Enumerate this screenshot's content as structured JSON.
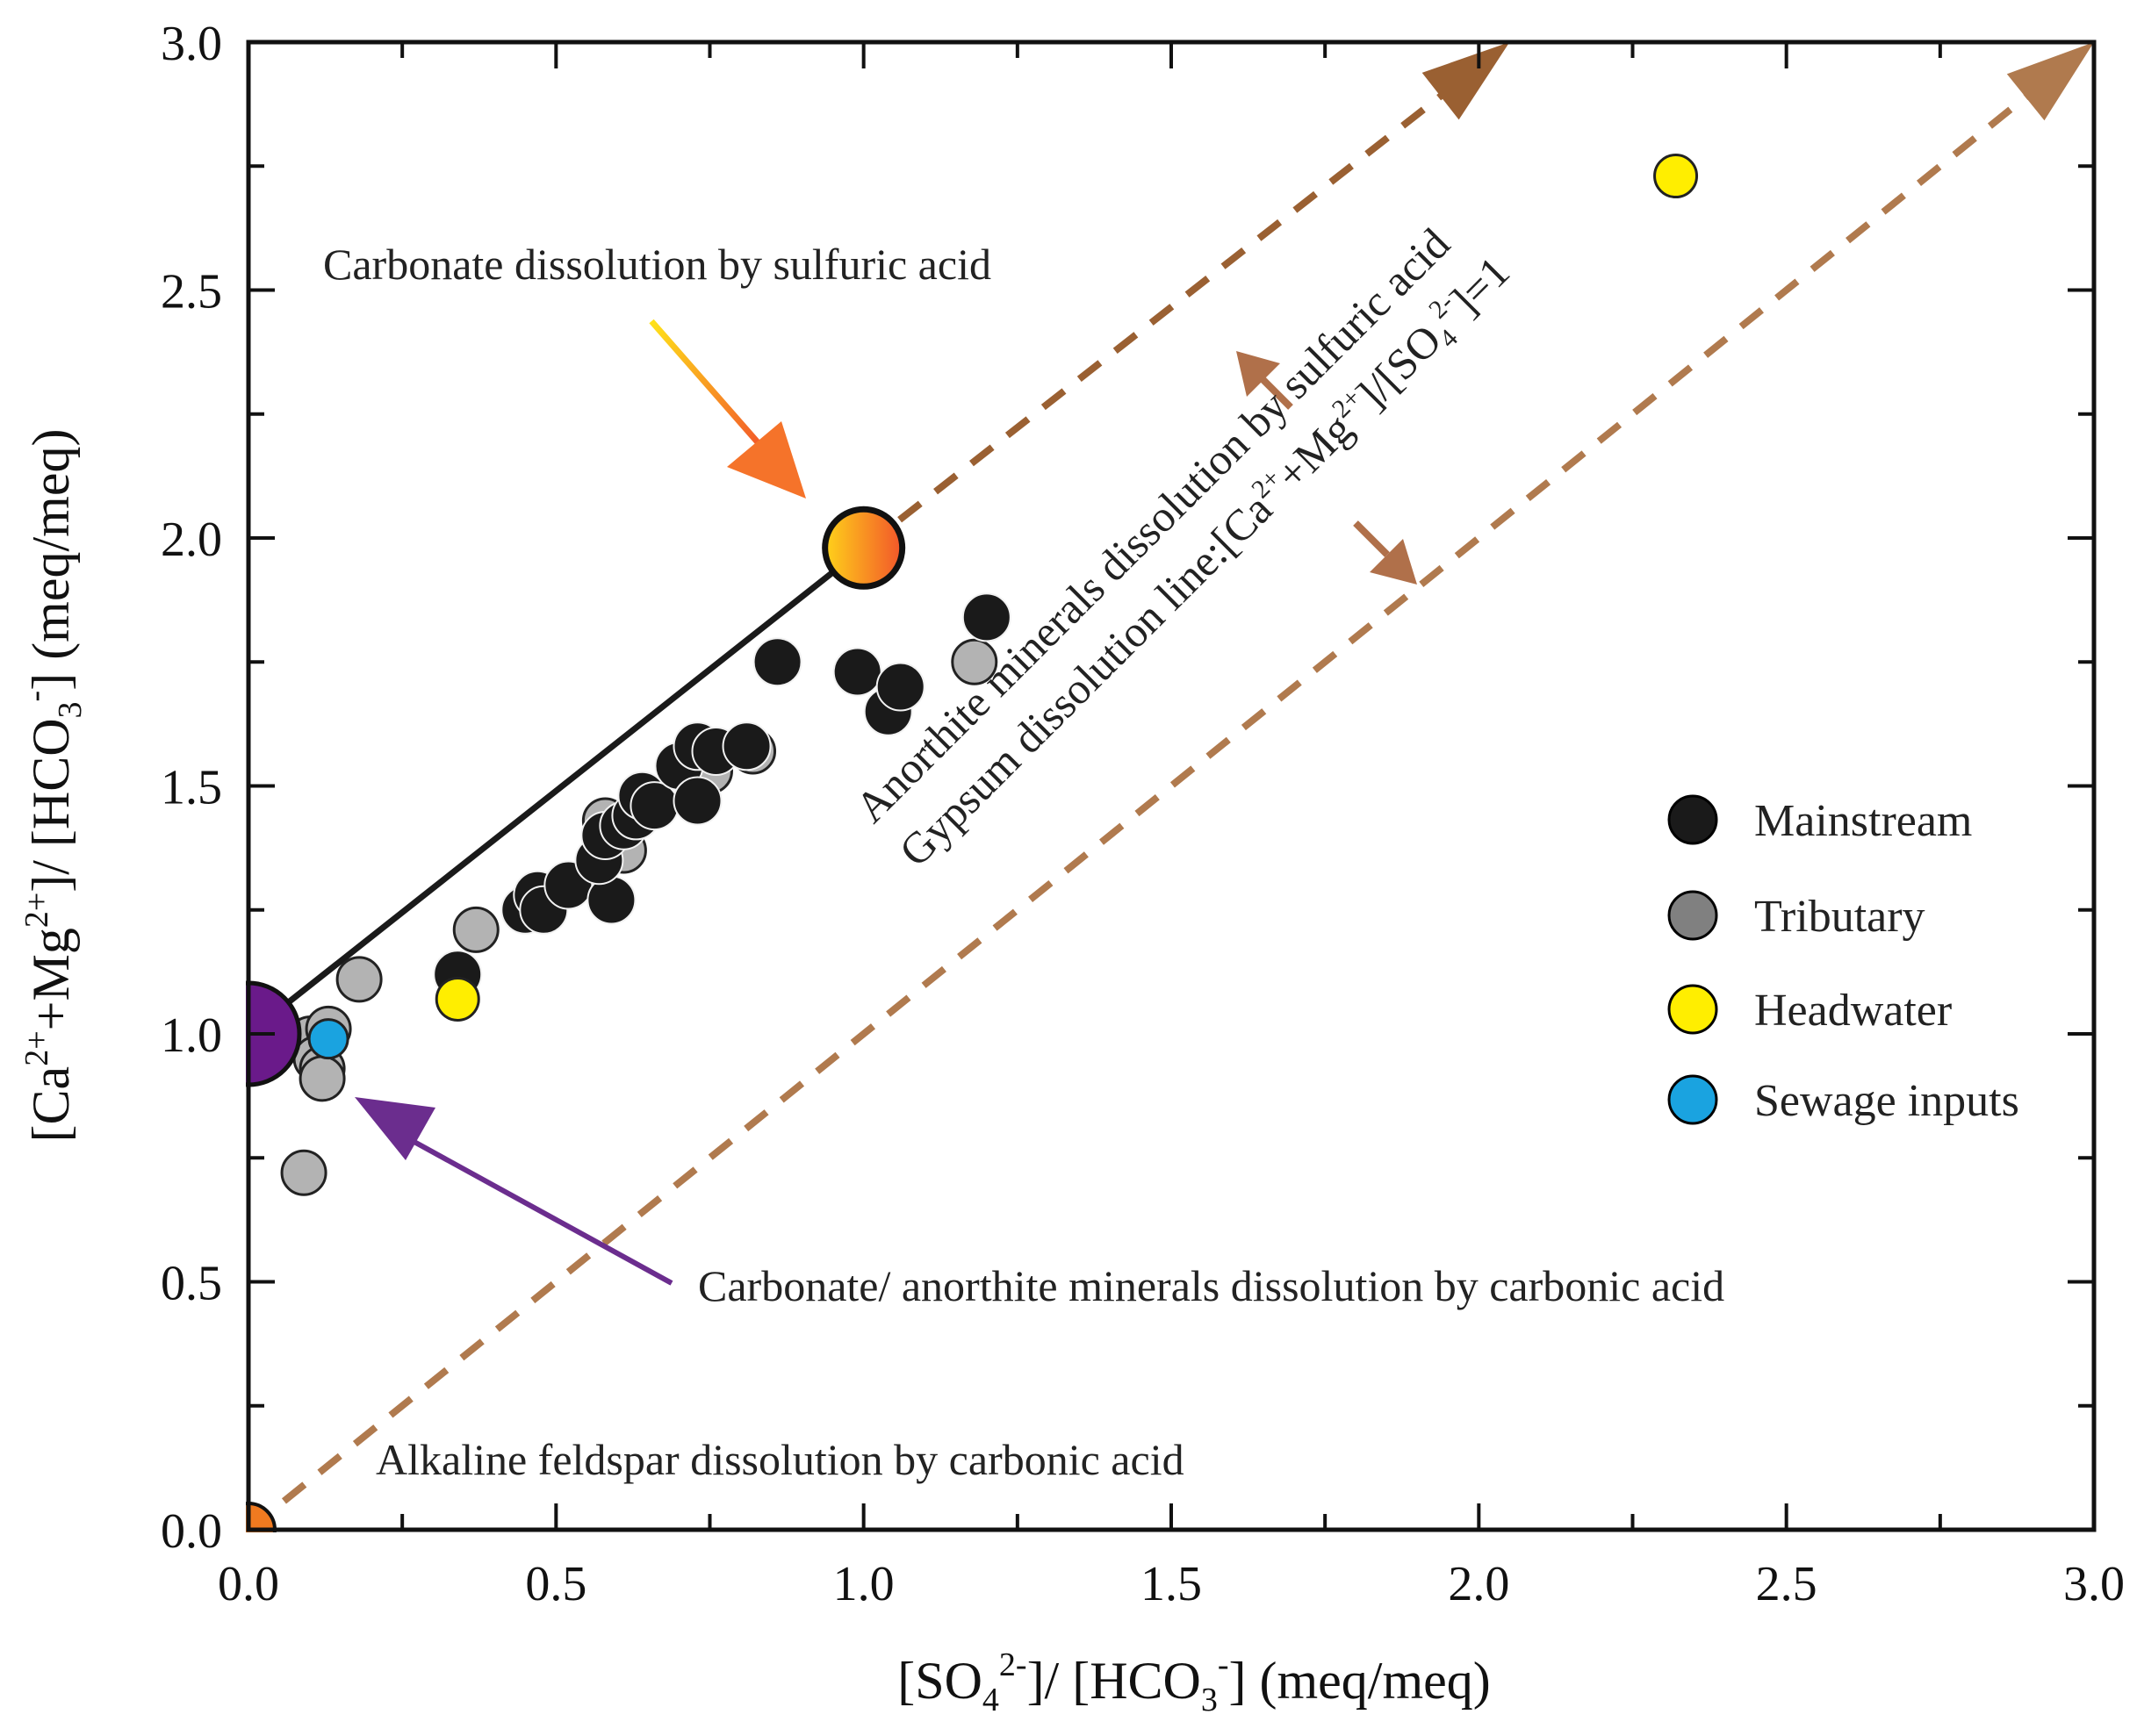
{
  "chart_data": {
    "type": "scatter",
    "xlabel": {
      "pre": "[SO",
      "sub": "4",
      "sup": "2-",
      "post": "]/ [HCO",
      "sub2": "3",
      "sup2": "-",
      "post2": "] (meq/meq)"
    },
    "ylabel": {
      "pre": "[Ca",
      "sup": "2+",
      "mid": "+Mg",
      "sup2": "2+",
      "post": "]/ [HCO",
      "sub": "3",
      "sup3": "-",
      "post2": "] (meq/meq)"
    },
    "xlim": [
      0,
      3.0
    ],
    "ylim": [
      0,
      3.0
    ],
    "x_ticks": [
      "0.0",
      "0.5",
      "1.0",
      "1.5",
      "2.0",
      "2.5",
      "3.0"
    ],
    "y_ticks": [
      "0.0",
      "0.5",
      "1.0",
      "1.5",
      "2.0",
      "2.5",
      "3.0"
    ],
    "grid": false,
    "colors": {
      "mainstream": "#1a1a1a",
      "tributary": "#b3b3b3",
      "headwater": "#ffee00",
      "sewage": "#1aa3e0",
      "end_carbonic": "#6a1a8a",
      "end_alkaline": "#f07a20",
      "dashed": "#b07a4e",
      "dashed_upper": "#9a6032"
    },
    "series": [
      {
        "name": "Mainstream",
        "points": [
          [
            0.34,
            1.12
          ],
          [
            0.45,
            1.25
          ],
          [
            0.47,
            1.28
          ],
          [
            0.48,
            1.25
          ],
          [
            0.52,
            1.3
          ],
          [
            0.59,
            1.27
          ],
          [
            0.57,
            1.35
          ],
          [
            0.58,
            1.4
          ],
          [
            0.61,
            1.42
          ],
          [
            0.63,
            1.44
          ],
          [
            0.64,
            1.48
          ],
          [
            0.66,
            1.46
          ],
          [
            0.7,
            1.54
          ],
          [
            0.73,
            1.58
          ],
          [
            0.73,
            1.47
          ],
          [
            0.76,
            1.57
          ],
          [
            0.81,
            1.58
          ],
          [
            0.86,
            1.75
          ],
          [
            0.99,
            1.73
          ],
          [
            1.04,
            1.65
          ],
          [
            1.06,
            1.7
          ],
          [
            1.2,
            1.84
          ]
        ]
      },
      {
        "name": "Tributary",
        "points": [
          [
            0.09,
            0.72
          ],
          [
            0.1,
            0.99
          ],
          [
            0.11,
            0.95
          ],
          [
            0.12,
            0.93
          ],
          [
            0.12,
            0.91
          ],
          [
            0.13,
            1.01
          ],
          [
            0.18,
            1.11
          ],
          [
            0.37,
            1.21
          ],
          [
            0.58,
            1.43
          ],
          [
            0.61,
            1.37
          ],
          [
            0.75,
            1.53
          ],
          [
            0.82,
            1.57
          ],
          [
            1.18,
            1.75
          ]
        ]
      },
      {
        "name": "Headwater",
        "points": [
          [
            0.34,
            1.07
          ],
          [
            2.32,
            2.73
          ]
        ]
      },
      {
        "name": "Sewage inputs",
        "points": [
          [
            0.13,
            0.99
          ]
        ]
      }
    ],
    "end_members": [
      {
        "name": "carbonic-end-member",
        "point": [
          0.0,
          1.0
        ]
      },
      {
        "name": "sulfuric-end-member",
        "point": [
          1.0,
          1.98
        ]
      },
      {
        "name": "alkaline-end-member",
        "point": [
          0.0,
          0.0
        ]
      }
    ],
    "mixing_line": {
      "from": [
        0.0,
        1.0
      ],
      "to": [
        1.0,
        1.98
      ]
    },
    "dashed_lines": [
      {
        "name": "anorthite-sulfuric-line",
        "from": [
          1.0,
          1.98
        ],
        "to": [
          2.05,
          3.0
        ]
      },
      {
        "name": "gypsum-line-1to1",
        "from": [
          0.0,
          0.0
        ],
        "to": [
          3.0,
          3.0
        ]
      }
    ],
    "legend": {
      "position": "right",
      "entries": [
        "Mainstream",
        "Tributary",
        "Headwater",
        "Sewage inputs"
      ]
    },
    "annotations": {
      "sulfuric": "Carbonate dissolution by sulfuric acid",
      "carbonic": "Carbonate/ anorthite minerals dissolution by carbonic acid",
      "alkaline": "Alkaline feldspar dissolution by carbonic acid",
      "anorthite": "Anorthite minerals dissolution by sulfuric acid",
      "gypsum": {
        "pre": "Gypsum dissolution line:[Ca",
        "sup": "2+",
        "mid": "+Mg",
        "sup2": "2+",
        "mid2": "]/[SO",
        "sub": "4",
        "sup3": "2-",
        "post": "]=1"
      }
    }
  }
}
